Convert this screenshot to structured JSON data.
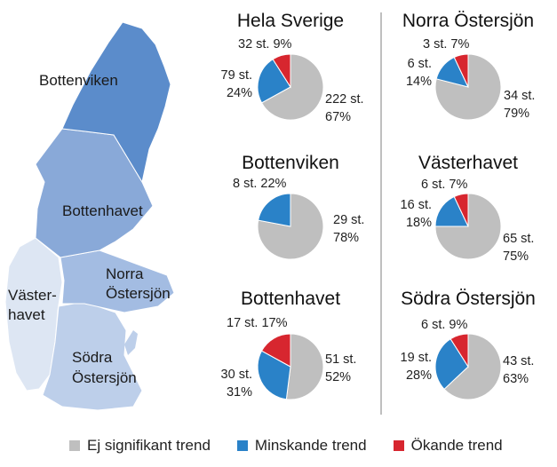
{
  "colors": {
    "ej_signifikant": "#BFBFBF",
    "minskande": "#2A82C8",
    "okande": "#D7262F",
    "region_bottenviken": "#5B8CCB",
    "region_bottenhavet": "#89A9D8",
    "region_norra_ostersjon": "#A3BCE2",
    "region_vasterhavet": "#DDE6F3",
    "region_sodra_ostersjon": "#BDCFEA"
  },
  "map": {
    "regions": [
      {
        "name": "Bottenviken",
        "color": "#5B8CCB"
      },
      {
        "name": "Bottenhavet",
        "color": "#89A9D8"
      },
      {
        "name": "Norra Östersjön",
        "lines": [
          "Norra",
          "Östersjön"
        ],
        "color": "#A3BCE2"
      },
      {
        "name": "Västerhavet",
        "lines": [
          "Väster-",
          "havet"
        ],
        "color": "#DDE6F3"
      },
      {
        "name": "Södra Östersjön",
        "lines": [
          "Södra",
          "Östersjön"
        ],
        "color": "#BDCFEA"
      }
    ]
  },
  "legend": {
    "items": [
      {
        "label": "Ej signifikant trend",
        "color": "#BFBFBF"
      },
      {
        "label": "Minskande trend",
        "color": "#2A82C8"
      },
      {
        "label": "Ökande trend",
        "color": "#D7262F"
      }
    ]
  },
  "chart_data": [
    {
      "type": "pie",
      "title": "Hela Sverige",
      "slices": [
        {
          "category": "Ej signifikant trend",
          "count": 222,
          "count_label": "222 st.",
          "percent": 67,
          "percent_label": "67%"
        },
        {
          "category": "Minskande trend",
          "count": 79,
          "count_label": "79 st.",
          "percent": 24,
          "percent_label": "24%"
        },
        {
          "category": "Ökande trend",
          "count": 32,
          "count_label": "32 st.",
          "percent": 9,
          "percent_label": "9%"
        }
      ]
    },
    {
      "type": "pie",
      "title": "Norra Östersjön",
      "slices": [
        {
          "category": "Ej signifikant trend",
          "count": 34,
          "count_label": "34 st.",
          "percent": 79,
          "percent_label": "79%"
        },
        {
          "category": "Minskande trend",
          "count": 6,
          "count_label": "6 st.",
          "percent": 14,
          "percent_label": "14%"
        },
        {
          "category": "Ökande trend",
          "count": 3,
          "count_label": "3 st.",
          "percent": 7,
          "percent_label": "7%"
        }
      ]
    },
    {
      "type": "pie",
      "title": "Bottenviken",
      "slices": [
        {
          "category": "Ej signifikant trend",
          "count": 29,
          "count_label": "29 st.",
          "percent": 78,
          "percent_label": "78%"
        },
        {
          "category": "Minskande trend",
          "count": 8,
          "count_label": "8 st.",
          "percent": 22,
          "percent_label": "22%"
        }
      ]
    },
    {
      "type": "pie",
      "title": "Västerhavet",
      "slices": [
        {
          "category": "Ej signifikant trend",
          "count": 65,
          "count_label": "65 st.",
          "percent": 75,
          "percent_label": "75%"
        },
        {
          "category": "Minskande trend",
          "count": 16,
          "count_label": "16 st.",
          "percent": 18,
          "percent_label": "18%"
        },
        {
          "category": "Ökande trend",
          "count": 6,
          "count_label": "6 st.",
          "percent": 7,
          "percent_label": "7%"
        }
      ]
    },
    {
      "type": "pie",
      "title": "Bottenhavet",
      "slices": [
        {
          "category": "Ej signifikant trend",
          "count": 51,
          "count_label": "51 st.",
          "percent": 52,
          "percent_label": "52%"
        },
        {
          "category": "Minskande trend",
          "count": 30,
          "count_label": "30 st.",
          "percent": 31,
          "percent_label": "31%"
        },
        {
          "category": "Ökande trend",
          "count": 17,
          "count_label": "17 st.",
          "percent": 17,
          "percent_label": "17%"
        }
      ]
    },
    {
      "type": "pie",
      "title": "Södra Östersjön",
      "slices": [
        {
          "category": "Ej signifikant trend",
          "count": 43,
          "count_label": "43 st.",
          "percent": 63,
          "percent_label": "63%"
        },
        {
          "category": "Minskande trend",
          "count": 19,
          "count_label": "19 st.",
          "percent": 28,
          "percent_label": "28%"
        },
        {
          "category": "Ökande trend",
          "count": 6,
          "count_label": "6 st.",
          "percent": 9,
          "percent_label": "9%"
        }
      ]
    }
  ]
}
